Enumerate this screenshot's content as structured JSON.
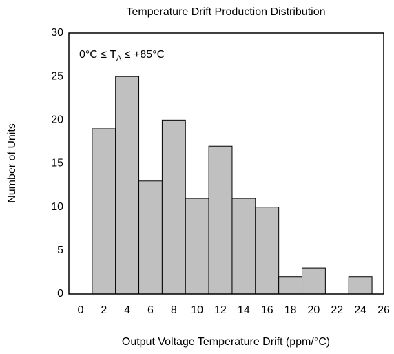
{
  "chart_data": {
    "type": "histogram",
    "title": "Temperature Drift Production Distribution",
    "xlabel": "Output Voltage Temperature Drift (ppm/°C)",
    "ylabel": "Number of Units",
    "annotation": {
      "text": "0°C ≤ T",
      "sub": "A",
      "tail": " ≤ +85°C"
    },
    "bins": [
      -1,
      1,
      3,
      5,
      7,
      9,
      11,
      13,
      15,
      17,
      19,
      21,
      23,
      25
    ],
    "values": [
      0,
      19,
      25,
      13,
      20,
      11,
      17,
      11,
      10,
      2,
      3,
      0,
      2
    ],
    "color": "#c0c0c0",
    "xlim": [
      -1,
      26
    ],
    "xticks": [
      0,
      2,
      4,
      6,
      8,
      10,
      12,
      14,
      16,
      18,
      20,
      22,
      24,
      26
    ],
    "ylim": [
      0,
      30
    ],
    "yticks": [
      0,
      5,
      10,
      15,
      20,
      25,
      30
    ],
    "grid": false
  }
}
